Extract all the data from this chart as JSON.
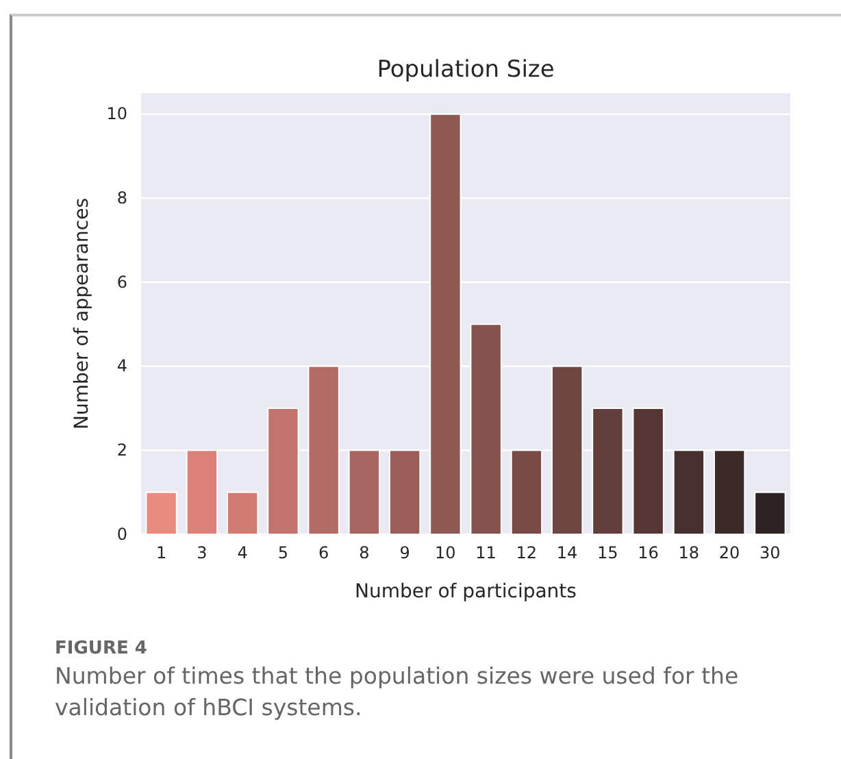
{
  "chart_data": {
    "type": "bar",
    "title": "Population Size",
    "xlabel": "Number of participants",
    "ylabel": "Number of appearances",
    "categories": [
      "1",
      "3",
      "4",
      "5",
      "6",
      "8",
      "9",
      "10",
      "11",
      "12",
      "14",
      "15",
      "16",
      "18",
      "20",
      "30"
    ],
    "values": [
      1,
      2,
      1,
      3,
      4,
      2,
      2,
      10,
      5,
      2,
      4,
      3,
      3,
      2,
      2,
      1
    ],
    "colors": [
      "#ea8b80",
      "#dd8178",
      "#d07a71",
      "#c2736b",
      "#b36b65",
      "#a6655f",
      "#9b5e58",
      "#8e5953",
      "#85524d",
      "#7a4b46",
      "#6d4541",
      "#623f3b",
      "#553634",
      "#472f2d",
      "#3c2a28",
      "#2e2222"
    ],
    "ylim": [
      0,
      10.5
    ],
    "yticks": [
      0,
      2,
      4,
      6,
      8,
      10
    ],
    "grid": "y",
    "annotations": [
      "FIGURE 4",
      "Number of times that the population sizes were used for the validation of hBCI systems."
    ]
  }
}
